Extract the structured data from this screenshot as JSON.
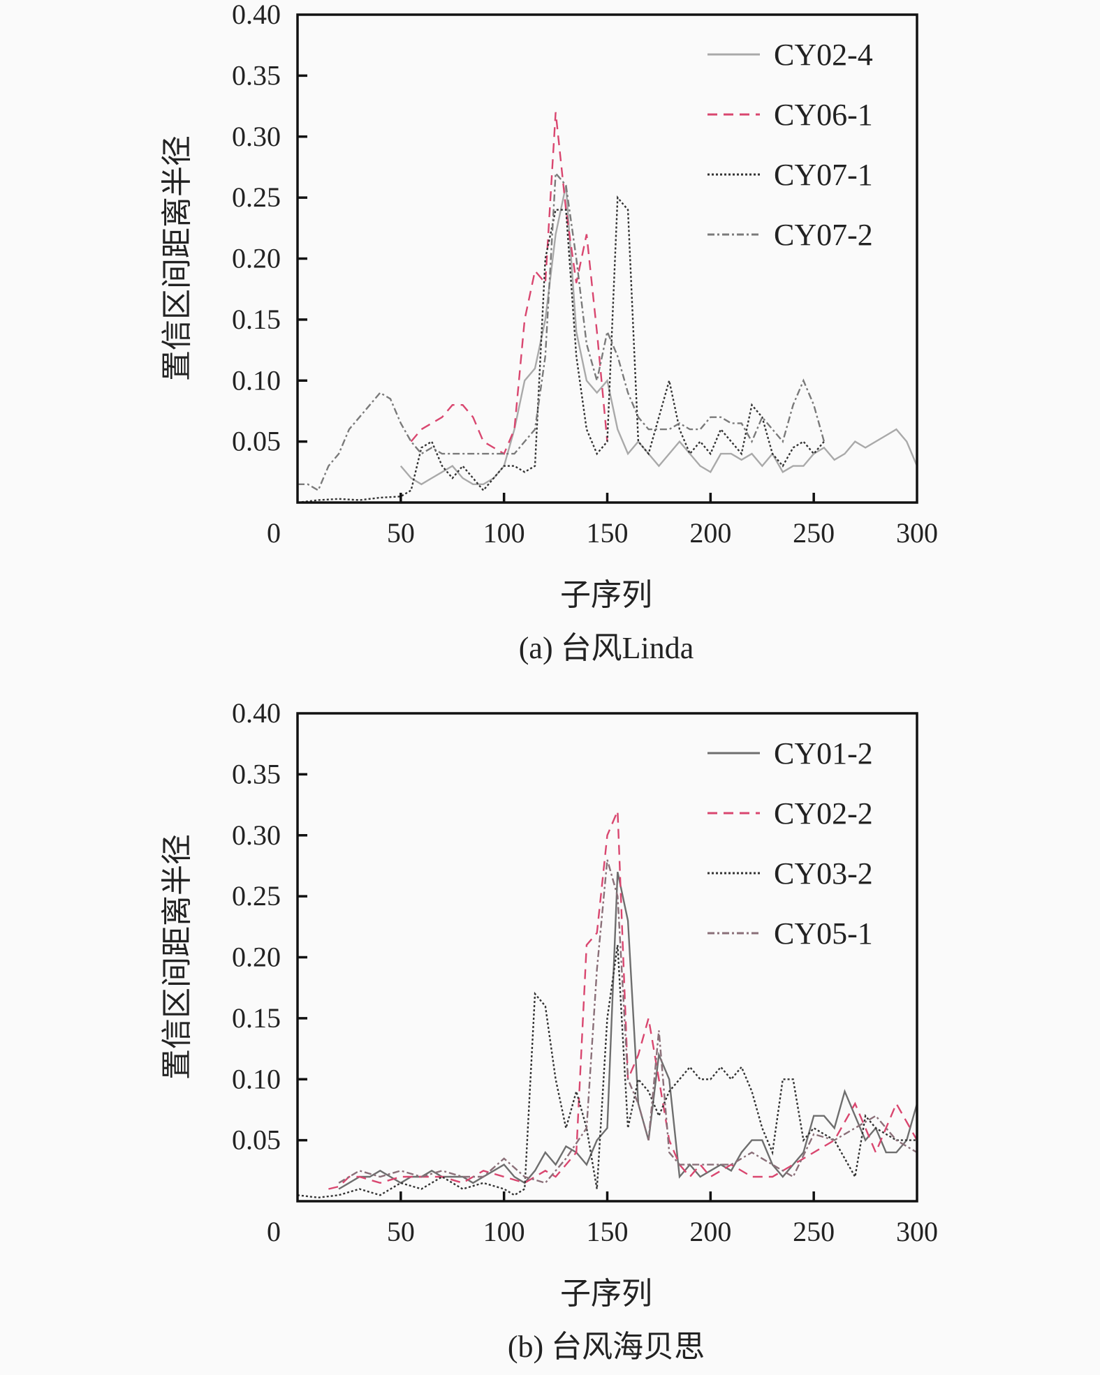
{
  "chart_data": [
    {
      "type": "line",
      "caption": "(a) 台风Linda",
      "xlabel": "子序列",
      "ylabel": "置信区间距离半径",
      "xlim": [
        0,
        300
      ],
      "ylim": [
        0,
        0.4
      ],
      "xticks": [
        "0",
        "50",
        "100",
        "150",
        "200",
        "250",
        "300"
      ],
      "yticks": [
        "0.05",
        "0.10",
        "0.15",
        "0.20",
        "0.25",
        "0.30",
        "0.35",
        "0.40"
      ],
      "legend_position": "top-right",
      "series": [
        {
          "name": "CY02-4",
          "style": "solid",
          "color": "#a9a9a9",
          "x": [
            50,
            55,
            60,
            65,
            70,
            75,
            80,
            85,
            90,
            95,
            100,
            105,
            110,
            115,
            120,
            125,
            130,
            135,
            140,
            145,
            150,
            155,
            160,
            165,
            170,
            175,
            180,
            185,
            190,
            195,
            200,
            205,
            210,
            215,
            220,
            225,
            230,
            235,
            240,
            245,
            250,
            255,
            260,
            265,
            270,
            275,
            280,
            285,
            290,
            295,
            300
          ],
          "y": [
            0.03,
            0.02,
            0.015,
            0.02,
            0.025,
            0.03,
            0.02,
            0.015,
            0.015,
            0.02,
            0.03,
            0.06,
            0.1,
            0.11,
            0.15,
            0.22,
            0.26,
            0.14,
            0.1,
            0.09,
            0.1,
            0.06,
            0.04,
            0.05,
            0.04,
            0.03,
            0.04,
            0.05,
            0.04,
            0.03,
            0.025,
            0.04,
            0.04,
            0.035,
            0.04,
            0.03,
            0.04,
            0.025,
            0.03,
            0.03,
            0.04,
            0.045,
            0.035,
            0.04,
            0.05,
            0.045,
            0.05,
            0.055,
            0.06,
            0.05,
            0.03
          ]
        },
        {
          "name": "CY06-1",
          "style": "dashed",
          "color": "#d9466f",
          "x": [
            55,
            60,
            65,
            70,
            75,
            80,
            85,
            90,
            95,
            100,
            105,
            110,
            115,
            120,
            125,
            130,
            135,
            140,
            145,
            150
          ],
          "y": [
            0.05,
            0.06,
            0.065,
            0.07,
            0.08,
            0.08,
            0.07,
            0.05,
            0.045,
            0.04,
            0.06,
            0.15,
            0.19,
            0.18,
            0.32,
            0.24,
            0.18,
            0.22,
            0.14,
            0.05
          ]
        },
        {
          "name": "CY07-1",
          "style": "dotted",
          "color": "#333333",
          "x": [
            0,
            10,
            20,
            30,
            40,
            50,
            55,
            60,
            65,
            70,
            75,
            80,
            85,
            90,
            95,
            100,
            105,
            110,
            115,
            120,
            125,
            130,
            135,
            140,
            145,
            150,
            155,
            160,
            165,
            170,
            175,
            180,
            185,
            190,
            195,
            200,
            205,
            210,
            215,
            220,
            225,
            230,
            235,
            240,
            245,
            250,
            255
          ],
          "y": [
            0.0,
            0.002,
            0.003,
            0.002,
            0.004,
            0.005,
            0.01,
            0.045,
            0.05,
            0.03,
            0.02,
            0.03,
            0.02,
            0.01,
            0.02,
            0.03,
            0.03,
            0.025,
            0.03,
            0.2,
            0.24,
            0.24,
            0.12,
            0.06,
            0.04,
            0.05,
            0.25,
            0.24,
            0.05,
            0.04,
            0.07,
            0.1,
            0.06,
            0.04,
            0.05,
            0.04,
            0.06,
            0.05,
            0.04,
            0.08,
            0.07,
            0.04,
            0.03,
            0.045,
            0.05,
            0.04,
            0.05
          ]
        },
        {
          "name": "CY07-2",
          "style": "dashdot",
          "color": "#7a7a7a",
          "x": [
            0,
            5,
            10,
            15,
            20,
            25,
            30,
            35,
            40,
            45,
            50,
            55,
            60,
            65,
            70,
            80,
            90,
            100,
            105,
            110,
            115,
            120,
            125,
            130,
            135,
            140,
            145,
            150,
            155,
            160,
            165,
            170,
            175,
            180,
            185,
            190,
            195,
            200,
            205,
            210,
            215,
            220,
            225,
            230,
            235,
            240,
            245,
            250,
            255
          ],
          "y": [
            0.015,
            0.015,
            0.01,
            0.03,
            0.04,
            0.06,
            0.07,
            0.08,
            0.09,
            0.085,
            0.065,
            0.05,
            0.04,
            0.045,
            0.04,
            0.04,
            0.04,
            0.04,
            0.04,
            0.05,
            0.06,
            0.12,
            0.27,
            0.26,
            0.2,
            0.13,
            0.1,
            0.14,
            0.12,
            0.09,
            0.07,
            0.06,
            0.06,
            0.06,
            0.065,
            0.06,
            0.06,
            0.07,
            0.07,
            0.065,
            0.065,
            0.05,
            0.07,
            0.06,
            0.05,
            0.08,
            0.1,
            0.08,
            0.05
          ]
        }
      ]
    },
    {
      "type": "line",
      "caption": "(b) 台风海贝思",
      "xlabel": "子序列",
      "ylabel": "置信区间距离半径",
      "xlim": [
        0,
        300
      ],
      "ylim": [
        0,
        0.4
      ],
      "xticks": [
        "0",
        "50",
        "100",
        "150",
        "200",
        "250",
        "300"
      ],
      "yticks": [
        "0.05",
        "0.10",
        "0.15",
        "0.20",
        "0.25",
        "0.30",
        "0.35",
        "0.40"
      ],
      "legend_position": "top-right",
      "series": [
        {
          "name": "CY01-2",
          "style": "solid",
          "color": "#6e6e6e",
          "x": [
            20,
            25,
            30,
            35,
            40,
            45,
            50,
            55,
            60,
            65,
            70,
            75,
            80,
            85,
            90,
            95,
            100,
            105,
            110,
            115,
            120,
            125,
            130,
            135,
            140,
            145,
            150,
            155,
            160,
            165,
            170,
            175,
            180,
            185,
            190,
            195,
            200,
            205,
            210,
            215,
            220,
            225,
            230,
            235,
            240,
            245,
            250,
            255,
            260,
            265,
            270,
            275,
            280,
            285,
            290,
            295,
            300
          ],
          "y": [
            0.01,
            0.015,
            0.02,
            0.02,
            0.025,
            0.02,
            0.015,
            0.02,
            0.02,
            0.025,
            0.02,
            0.02,
            0.02,
            0.015,
            0.02,
            0.025,
            0.03,
            0.02,
            0.015,
            0.025,
            0.04,
            0.03,
            0.045,
            0.04,
            0.03,
            0.05,
            0.06,
            0.27,
            0.23,
            0.08,
            0.05,
            0.12,
            0.1,
            0.02,
            0.03,
            0.02,
            0.025,
            0.03,
            0.025,
            0.04,
            0.05,
            0.05,
            0.03,
            0.02,
            0.03,
            0.04,
            0.07,
            0.07,
            0.06,
            0.09,
            0.07,
            0.05,
            0.06,
            0.04,
            0.04,
            0.05,
            0.08
          ]
        },
        {
          "name": "CY02-2",
          "style": "dashed",
          "color": "#d9466f",
          "x": [
            15,
            20,
            25,
            30,
            40,
            50,
            60,
            70,
            80,
            90,
            100,
            110,
            115,
            120,
            125,
            130,
            135,
            140,
            145,
            150,
            155,
            160,
            165,
            170,
            175,
            180,
            185,
            190,
            195,
            200,
            210,
            220,
            230,
            240,
            250,
            260,
            270,
            280,
            290,
            300
          ],
          "y": [
            0.01,
            0.012,
            0.02,
            0.02,
            0.015,
            0.02,
            0.02,
            0.02,
            0.015,
            0.025,
            0.02,
            0.015,
            0.02,
            0.025,
            0.02,
            0.03,
            0.04,
            0.21,
            0.22,
            0.3,
            0.32,
            0.1,
            0.12,
            0.15,
            0.1,
            0.05,
            0.03,
            0.02,
            0.03,
            0.02,
            0.03,
            0.02,
            0.02,
            0.03,
            0.04,
            0.05,
            0.08,
            0.04,
            0.08,
            0.05
          ]
        },
        {
          "name": "CY03-2",
          "style": "dotted",
          "color": "#333333",
          "x": [
            0,
            10,
            20,
            30,
            40,
            50,
            60,
            70,
            80,
            90,
            100,
            105,
            110,
            115,
            120,
            125,
            130,
            135,
            140,
            145,
            150,
            155,
            160,
            165,
            170,
            175,
            180,
            185,
            190,
            195,
            200,
            205,
            210,
            215,
            220,
            225,
            230,
            235,
            240,
            245,
            250,
            260,
            270,
            275,
            280,
            290,
            300
          ],
          "y": [
            0.005,
            0.003,
            0.005,
            0.01,
            0.005,
            0.015,
            0.01,
            0.02,
            0.01,
            0.015,
            0.01,
            0.005,
            0.01,
            0.17,
            0.16,
            0.1,
            0.06,
            0.09,
            0.06,
            0.01,
            0.15,
            0.21,
            0.06,
            0.1,
            0.09,
            0.07,
            0.09,
            0.1,
            0.11,
            0.1,
            0.1,
            0.11,
            0.1,
            0.11,
            0.09,
            0.06,
            0.04,
            0.1,
            0.1,
            0.05,
            0.06,
            0.05,
            0.02,
            0.07,
            0.06,
            0.05,
            0.05
          ]
        },
        {
          "name": "CY05-1",
          "style": "dashdot",
          "color": "#8a6f78",
          "x": [
            20,
            30,
            40,
            50,
            60,
            70,
            80,
            90,
            100,
            110,
            120,
            130,
            140,
            145,
            150,
            155,
            160,
            165,
            170,
            175,
            180,
            185,
            190,
            200,
            210,
            220,
            230,
            240,
            250,
            260,
            270,
            280,
            290,
            300
          ],
          "y": [
            0.015,
            0.025,
            0.02,
            0.025,
            0.02,
            0.025,
            0.02,
            0.02,
            0.035,
            0.02,
            0.015,
            0.035,
            0.06,
            0.19,
            0.28,
            0.25,
            0.1,
            0.08,
            0.05,
            0.14,
            0.04,
            0.03,
            0.03,
            0.03,
            0.03,
            0.04,
            0.03,
            0.02,
            0.055,
            0.05,
            0.06,
            0.07,
            0.05,
            0.04
          ]
        }
      ]
    }
  ]
}
